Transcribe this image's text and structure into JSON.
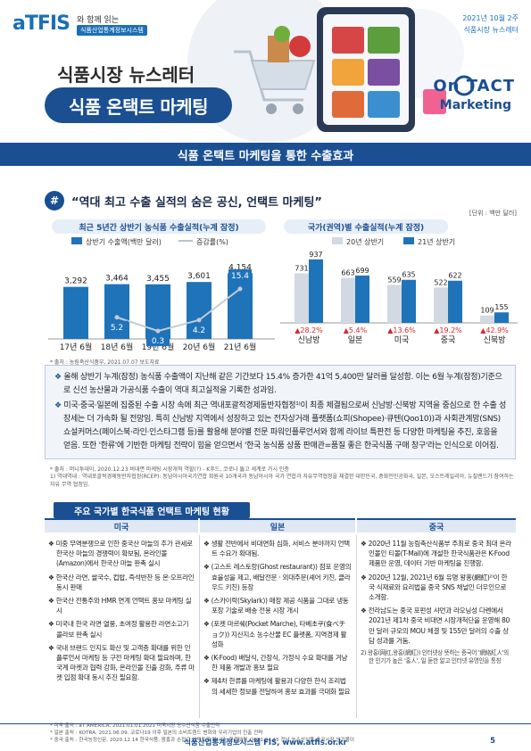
{
  "header": {
    "logo": "aTFIS",
    "tagline": "와 함께 읽는",
    "logo_sub": "식품산업통계정보시스템",
    "issue_date": "2021년 10월 2주",
    "issue_label": "식품시장 뉴스레터",
    "newsletter": "식품시장 뉴스레터",
    "main_title": "식품 온택트 마케팅",
    "ontact_1": "On TACT",
    "ontact_2": "Marketing"
  },
  "subtitle": "식품 온택트 마케팅을 통한 수출효과",
  "headline": {
    "icon": "#",
    "text": "“역대 최고 수출 실적의 숨은 공신, 언택트 마케팅”",
    "unit": "[단위 : 백만 달러]"
  },
  "chart_data": [
    {
      "type": "bar",
      "title": "최근 5년간 상반기 농식품 수출실적(누계 잠정)",
      "categories": [
        "17년 6월",
        "18년 6월",
        "19년 6월",
        "20년 6월",
        "21년 6월"
      ],
      "series": [
        {
          "name": "상반기 수출액(백만 달러)",
          "type": "bar",
          "values": [
            3292,
            3464,
            3455,
            3601,
            4154
          ]
        },
        {
          "name": "증감률(%)",
          "type": "line",
          "values": [
            null,
            5.2,
            0.3,
            4.2,
            15.4
          ]
        }
      ],
      "value_labels": [
        "3,292",
        "3,464",
        "3,455",
        "3,601",
        "4,154"
      ],
      "rate_labels": [
        "5.2",
        "0.3",
        "4.2",
        "15.4"
      ],
      "source": "* 출처 : 농림축산식품부, 2021.07.07 보도자료"
    },
    {
      "type": "bar",
      "title": "국가(권역)별 수출실적(누계 잠정)",
      "categories": [
        "신남방",
        "일본",
        "미국",
        "중국",
        "신북방"
      ],
      "series": [
        {
          "name": "20년 상반기",
          "values": [
            731,
            663,
            559,
            522,
            109
          ]
        },
        {
          "name": "21년 상반기",
          "values": [
            937,
            699,
            635,
            622,
            155
          ]
        }
      ],
      "growth": [
        "▲28.2%",
        "▲5.4%",
        "▲13.6%",
        "▲19.2%",
        "▲42.9%"
      ],
      "colors": {
        "s2020": "#d2d9e2",
        "s2021": "#1f73b9",
        "growth": "#d9262c"
      }
    }
  ],
  "summary": [
    "올해 상반기 누계(잠정) 농식품 수출액이 지난해 같은 기간보다 15.4% 증가한 41억 5,400만 달러를 달성함. 이는 6월 누계(잠정)기준으로 신선 농산물과 가공식품 수출이 역대 최고실적을 기록한 성과임.",
    "미국·중국·일본에 집중된 수출 시장 속에 최근 역내포괄적경제동반자협정¹⁾이 최종 체결됨으로써 신남방·신북방 지역을 중심으로 한 수출 성장세는 더 가속화 될 전망임. 특히 신남방 지역에서 성장하고 있는 전자상거래 플랫폼(쇼피(Shopee)·큐텐(Qoo10))과 사회관계망(SNS) 쇼설커머스(페이스북·라인·인스타그램 등)를 활용해 분야별 전문 파워인플루언서와 함께 라이브 특판전 등 다양한 마케팅을 추진, 호응을 얻음. 또한 '한류'에 기반한 마케팅 전략이 힘을 얻으면서 '한국 농식품 상품 판매관=품질 좋은 한국식품 구매 창구'라는 인식으로 이어짐."
  ],
  "notes": {
    "n1": "* 출처 : 머니투데이, 2020.12.23 비대면 마케팅 시장개척 역할(?) - K푸드, 코로나 뚫고 세계로 가시 인증",
    "n2": "1) 역대역내 : 역내포괄적경제동반자협정(RCEP): 동남아시아국가연합 회원국 10개국과 동남아시아 국가 연합과 자유무역협정을 체결한 대한민국, 중화인민공화국, 일본, 오스트레일리아, 뉴질랜드가 참여하는 자유 무역 협정임."
  },
  "status": {
    "title": "주요 국가별 한국식품 언택트 마케팅 현황",
    "columns": [
      {
        "header": "미국",
        "items": [
          "미중 무역분쟁으로 인한 중국산 마늘의 추가 관세로 한국산 마늘의 경쟁력이 확보됨, 온라인몰(Amazon)에서 한국산 마늘 판촉 실시",
          "한국산 라면, 쌀국수, 컵밥, 즉석반찬 등 온·오프라인 동시 판매",
          "한국산 전통주와 HMR 연계 언택트 홍보 마케팅 실시",
          "미국내 한국 라면 열풍, 초여정 활용한 라면소고기 콜라보 판촉 실시",
          "국내 브랜드 인지도 확산 및 고객층 확대를 위한 인플루언서 마케팅 등 구전 마케팅 확대 필요하며, 한국계 마켓과 협력 강화, 온라인몰 진출 강화, 주류 마켓 입점 확대 동시 추진 필요함."
        ]
      },
      {
        "header": "일본",
        "items": [
          "생활 전반에서 비대면화 심화, 서비스 분야까지 언택트 수요가 확대됨.",
          "(고스트 레스토랑(Ghost restaurant)) 점포 운영의 효율성을 제고, 배달전문 · 외대주문(셰어 키친, 클라우드 키친) 등장",
          "(스카이락(Skylark)) 매장 제공 식품을 그대로 냉동포장 기술로 배송 전용 시장 개시",
          "(포켓 마르쉐(Pocket Marche), 타베초쿠(食べチョク)) 지산지소 농수산물 EC 플랫폼, 지역경제 활성화",
          "(K-Food) 배달식, 간장식, 가정식 수요 확대를 겨냥한 제품 개발과 홍보 필요",
          "제4차 한류를 마케팅에 활용과 다양한 한식 조리법의 세세한 정보를 전달하여 홍보 효과를 극대화 필요"
        ]
      },
      {
        "header": "중국",
        "items": [
          "2020년 11월 농림축산식품부 주최로 중국 최대 온라인몰인 티몰(T-Mall)에 개설한 한국식품관은 K-Food 제품만 운영, 데이터 기반 마케팅을 진행함.",
          "2020년 12월, 2021년 6월 유명 왕홍(網紅)²⁾이 한국 식재료와 요리법을 중국 SNS 채널인 더우인으로 소개함.",
          "전라남도는 중국 포펀성 샤먼과 라오닝성 다롄에서 2021년 제1차 중국 비대면 시장개척단을 운영해 80만 달러 규모의 MOU 체결 및 155만 달러의 수출 상담 성과를 거둠."
        ],
        "small_note": "2) 왕홍(网红,왕홍(網紅)) 인터넷상 뜻하는 중국어 '網絡紅人'의 한 인기가 높은 '홍人', 일 듣한 알고 인터넷 유명인을 통칭"
      }
    ]
  },
  "foot_notes": [
    "* 미국 출처 : aT AMERICA, 2021.01.01.2021 미국시장 농수산식품 수출전략",
    "* 일본 출처 : KOTRA, 2021.06.09. 코로나19 이후 일본의 소비트렌드 변화와 우리기업의 진출 전략",
    "* 중국 출처 : 한국농정신문, 2020.12.14 한국식품, 왕홍과 손잡고 언택트로 팝니다. 한경닷컴, 2021.04.15 전남 농수산식품 중국시장 인기몰이"
  ],
  "footer": {
    "text": "식품산업통계정보시스템 FIS, www.atfis.or.kr",
    "page": "5"
  }
}
